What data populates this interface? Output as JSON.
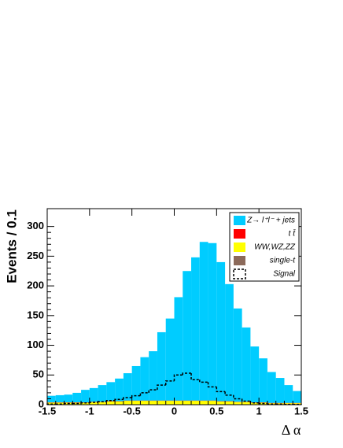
{
  "chart_data": {
    "type": "histogram",
    "y_label": "Events / 0.1",
    "x_label": "Δ α",
    "bins": [
      -1.5,
      -1.4,
      -1.3,
      -1.2,
      -1.1,
      -1.0,
      -0.9,
      -0.8,
      -0.7,
      -0.6,
      -0.5,
      -0.4,
      -0.3,
      -0.2,
      -0.1,
      0.0,
      0.1,
      0.2,
      0.3,
      0.4,
      0.5,
      0.6,
      0.7,
      0.8,
      0.9,
      1.0,
      1.1,
      1.2,
      1.3,
      1.4,
      1.5
    ],
    "series": [
      {
        "name": "Z→ l⁺l⁻ + jets",
        "color": "#00ccff",
        "stacked": true,
        "values": [
          11,
          12,
          13,
          16,
          21,
          23,
          28,
          32,
          38,
          46,
          58,
          73,
          83,
          115,
          138,
          174,
          218,
          241,
          267,
          265,
          234,
          197,
          157,
          125,
          94,
          74,
          52,
          42,
          30,
          20
        ]
      },
      {
        "name": "t t̄",
        "color": "#ff0000",
        "stacked": true,
        "values": [
          0.5,
          0.5,
          0.5,
          0.5,
          0.5,
          0.5,
          0.5,
          0.5,
          0.5,
          0.5,
          0.5,
          0.5,
          0.5,
          0.5,
          0.5,
          0.5,
          0.5,
          0.5,
          0.5,
          0.5,
          0.5,
          0.5,
          0.5,
          0.5,
          0.5,
          0.5,
          0.5,
          0.5,
          0.5,
          0.5
        ]
      },
      {
        "name": "WW,WZ,ZZ",
        "color": "#ffff00",
        "stacked": true,
        "values": [
          3,
          3,
          3,
          3,
          3,
          4,
          4,
          5,
          5,
          6,
          6,
          6,
          6,
          6,
          6,
          6,
          6,
          6,
          6,
          6,
          5,
          5,
          4,
          4,
          3,
          3,
          2,
          2,
          2,
          2
        ]
      },
      {
        "name": "single-t",
        "color": "#8c6a5a",
        "stacked": true,
        "values": [
          0.5,
          0.5,
          0.5,
          0.5,
          0.5,
          0.5,
          0.5,
          0.5,
          0.5,
          0.5,
          0.5,
          0.5,
          0.5,
          0.5,
          0.5,
          0.5,
          0.5,
          0.5,
          0.5,
          0.5,
          0.5,
          0.5,
          0.5,
          0.5,
          0.5,
          0.5,
          0.5,
          0.5,
          0.5,
          0.5
        ]
      },
      {
        "name": "Signal",
        "color": "#000000",
        "stacked": false,
        "dashed": true,
        "values": [
          1,
          1,
          2,
          2,
          3,
          4,
          5,
          7,
          9,
          12,
          15,
          20,
          25,
          33,
          40,
          50,
          53,
          42,
          38,
          30,
          22,
          16,
          10,
          6,
          3,
          2,
          1,
          1,
          0.5,
          0.5
        ]
      }
    ],
    "xlim": [
      -1.5,
      1.5
    ],
    "xticks": [
      -1.5,
      -1,
      -0.5,
      0,
      0.5,
      1,
      1.5
    ],
    "ylim": [
      0,
      330
    ],
    "yticks": [
      0,
      50,
      100,
      150,
      200,
      250,
      300
    ],
    "legend": "upper right"
  }
}
